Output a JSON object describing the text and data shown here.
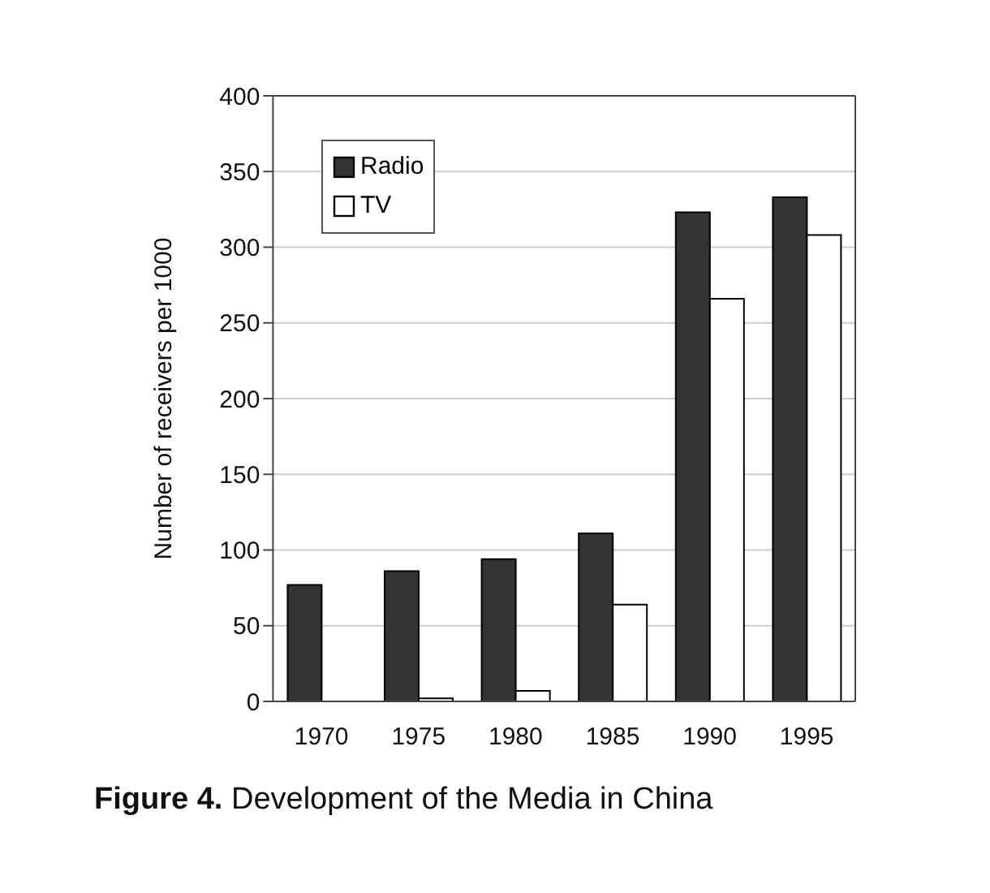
{
  "chart_data": {
    "type": "bar",
    "title": "Figure 4. Development of the Media in China",
    "ylabel": "Number of receivers per 1000",
    "categories": [
      "1970",
      "1975",
      "1980",
      "1985",
      "1990",
      "1995"
    ],
    "series": [
      {
        "name": "Radio",
        "color": "#333333",
        "values": [
          77,
          86,
          94,
          111,
          323,
          333
        ]
      },
      {
        "name": "TV",
        "color": "#ffffff",
        "values": [
          0,
          2,
          7,
          64,
          266,
          308
        ]
      }
    ],
    "ylim": [
      0,
      400
    ],
    "yticks": [
      0,
      50,
      100,
      150,
      200,
      250,
      300,
      350,
      400
    ],
    "grid": "y",
    "legend": "top left"
  }
}
